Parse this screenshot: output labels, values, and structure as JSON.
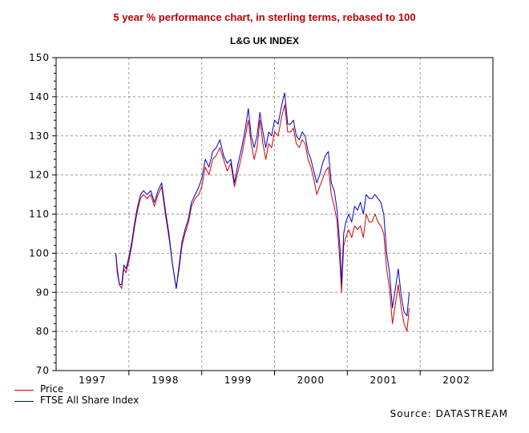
{
  "titles": {
    "main": "5 year % performance chart, in sterling terms, rebased to 100",
    "sub": "L&G UK INDEX"
  },
  "source": "Source: DATASTREAM",
  "colors": {
    "price": "#d40000",
    "ftse": "#0000c8",
    "title": "#c00000",
    "grid": "#9a9a9a"
  },
  "chart_data": {
    "type": "line",
    "title": "5 year % performance chart, in sterling terms, rebased to 100",
    "subtitle": "L&G UK INDEX",
    "xlabel": "",
    "ylabel": "",
    "xlim": [
      1997.0,
      2003.0
    ],
    "ylim": [
      70,
      150
    ],
    "x_ticks": [
      "1997",
      "1998",
      "1999",
      "2000",
      "2001",
      "2002"
    ],
    "y_ticks": [
      70,
      80,
      90,
      100,
      110,
      120,
      130,
      140,
      150
    ],
    "grid": true,
    "legend": "bottom-left",
    "series": [
      {
        "name": "Price",
        "points": [
          [
            1997.82,
            100
          ],
          [
            1997.84,
            95
          ],
          [
            1997.87,
            92
          ],
          [
            1997.9,
            91
          ],
          [
            1997.93,
            96
          ],
          [
            1997.96,
            95
          ],
          [
            1998.0,
            98
          ],
          [
            1998.04,
            102
          ],
          [
            1998.08,
            107
          ],
          [
            1998.12,
            111
          ],
          [
            1998.16,
            114
          ],
          [
            1998.2,
            115
          ],
          [
            1998.25,
            114
          ],
          [
            1998.3,
            115
          ],
          [
            1998.35,
            112
          ],
          [
            1998.4,
            115
          ],
          [
            1998.45,
            117
          ],
          [
            1998.5,
            110
          ],
          [
            1998.55,
            104
          ],
          [
            1998.6,
            97
          ],
          [
            1998.65,
            91
          ],
          [
            1998.69,
            96
          ],
          [
            1998.73,
            102
          ],
          [
            1998.77,
            105
          ],
          [
            1998.82,
            108
          ],
          [
            1998.86,
            112
          ],
          [
            1998.91,
            114
          ],
          [
            1998.96,
            115
          ],
          [
            1999.0,
            117
          ],
          [
            1999.05,
            122
          ],
          [
            1999.1,
            120
          ],
          [
            1999.15,
            124
          ],
          [
            1999.2,
            125
          ],
          [
            1999.25,
            127
          ],
          [
            1999.3,
            124
          ],
          [
            1999.35,
            121
          ],
          [
            1999.4,
            123
          ],
          [
            1999.45,
            117
          ],
          [
            1999.5,
            121
          ],
          [
            1999.55,
            125
          ],
          [
            1999.6,
            130
          ],
          [
            1999.64,
            134
          ],
          [
            1999.68,
            128
          ],
          [
            1999.72,
            124
          ],
          [
            1999.76,
            127
          ],
          [
            1999.8,
            134
          ],
          [
            1999.84,
            128
          ],
          [
            1999.88,
            124
          ],
          [
            1999.92,
            128
          ],
          [
            1999.96,
            127
          ],
          [
            2000.0,
            131
          ],
          [
            2000.05,
            130
          ],
          [
            2000.1,
            135
          ],
          [
            2000.14,
            138
          ],
          [
            2000.18,
            131
          ],
          [
            2000.22,
            131
          ],
          [
            2000.26,
            132
          ],
          [
            2000.3,
            128
          ],
          [
            2000.34,
            127
          ],
          [
            2000.38,
            129
          ],
          [
            2000.42,
            128
          ],
          [
            2000.46,
            124
          ],
          [
            2000.5,
            122
          ],
          [
            2000.54,
            119
          ],
          [
            2000.58,
            115
          ],
          [
            2000.62,
            117
          ],
          [
            2000.66,
            119
          ],
          [
            2000.7,
            121
          ],
          [
            2000.74,
            122
          ],
          [
            2000.78,
            115
          ],
          [
            2000.82,
            112
          ],
          [
            2000.86,
            108
          ],
          [
            2000.9,
            97
          ],
          [
            2000.92,
            90
          ],
          [
            2000.95,
            102
          ],
          [
            2000.98,
            104
          ],
          [
            2001.02,
            106
          ],
          [
            2001.06,
            104
          ],
          [
            2001.1,
            107
          ],
          [
            2001.14,
            106
          ],
          [
            2001.18,
            107
          ],
          [
            2001.22,
            104
          ],
          [
            2001.26,
            110
          ],
          [
            2001.3,
            108
          ],
          [
            2001.34,
            108
          ],
          [
            2001.38,
            110
          ],
          [
            2001.42,
            108
          ],
          [
            2001.46,
            107
          ],
          [
            2001.5,
            105
          ],
          [
            2001.54,
            96
          ],
          [
            2001.58,
            91
          ],
          [
            2001.62,
            82
          ],
          [
            2001.66,
            87
          ],
          [
            2001.7,
            92
          ],
          [
            2001.74,
            86
          ],
          [
            2001.78,
            82
          ],
          [
            2001.82,
            80
          ],
          [
            2001.85,
            86
          ]
        ]
      },
      {
        "name": "FTSE All Share Index",
        "points": [
          [
            1997.82,
            100
          ],
          [
            1997.84,
            96
          ],
          [
            1997.87,
            92
          ],
          [
            1997.9,
            92
          ],
          [
            1997.93,
            97
          ],
          [
            1997.96,
            96
          ],
          [
            1998.0,
            99
          ],
          [
            1998.04,
            103
          ],
          [
            1998.08,
            108
          ],
          [
            1998.12,
            112
          ],
          [
            1998.16,
            115
          ],
          [
            1998.2,
            116
          ],
          [
            1998.25,
            115
          ],
          [
            1998.3,
            116
          ],
          [
            1998.35,
            113
          ],
          [
            1998.4,
            116
          ],
          [
            1998.45,
            118
          ],
          [
            1998.5,
            111
          ],
          [
            1998.55,
            105
          ],
          [
            1998.6,
            97
          ],
          [
            1998.65,
            91
          ],
          [
            1998.69,
            97
          ],
          [
            1998.73,
            103
          ],
          [
            1998.77,
            106
          ],
          [
            1998.82,
            109
          ],
          [
            1998.86,
            113
          ],
          [
            1998.91,
            115
          ],
          [
            1998.96,
            117
          ],
          [
            1999.0,
            119
          ],
          [
            1999.05,
            124
          ],
          [
            1999.1,
            122
          ],
          [
            1999.15,
            126
          ],
          [
            1999.2,
            127
          ],
          [
            1999.25,
            129
          ],
          [
            1999.3,
            125
          ],
          [
            1999.35,
            123
          ],
          [
            1999.4,
            124
          ],
          [
            1999.45,
            118
          ],
          [
            1999.5,
            123
          ],
          [
            1999.55,
            127
          ],
          [
            1999.6,
            132
          ],
          [
            1999.64,
            137
          ],
          [
            1999.68,
            130
          ],
          [
            1999.72,
            127
          ],
          [
            1999.76,
            130
          ],
          [
            1999.8,
            136
          ],
          [
            1999.84,
            131
          ],
          [
            1999.88,
            127
          ],
          [
            1999.92,
            131
          ],
          [
            1999.96,
            130
          ],
          [
            2000.0,
            134
          ],
          [
            2000.05,
            133
          ],
          [
            2000.1,
            138
          ],
          [
            2000.14,
            141
          ],
          [
            2000.18,
            133
          ],
          [
            2000.22,
            133
          ],
          [
            2000.26,
            134
          ],
          [
            2000.3,
            130
          ],
          [
            2000.34,
            129
          ],
          [
            2000.38,
            131
          ],
          [
            2000.42,
            130
          ],
          [
            2000.46,
            126
          ],
          [
            2000.5,
            124
          ],
          [
            2000.54,
            121
          ],
          [
            2000.58,
            118
          ],
          [
            2000.62,
            120
          ],
          [
            2000.66,
            123
          ],
          [
            2000.7,
            125
          ],
          [
            2000.74,
            126
          ],
          [
            2000.78,
            118
          ],
          [
            2000.82,
            116
          ],
          [
            2000.86,
            111
          ],
          [
            2000.9,
            101
          ],
          [
            2000.92,
            92
          ],
          [
            2000.95,
            105
          ],
          [
            2000.98,
            108
          ],
          [
            2001.02,
            110
          ],
          [
            2001.06,
            108
          ],
          [
            2001.1,
            112
          ],
          [
            2001.14,
            111
          ],
          [
            2001.18,
            113
          ],
          [
            2001.22,
            110
          ],
          [
            2001.26,
            115
          ],
          [
            2001.3,
            114
          ],
          [
            2001.34,
            114
          ],
          [
            2001.38,
            115
          ],
          [
            2001.42,
            114
          ],
          [
            2001.46,
            113
          ],
          [
            2001.5,
            110
          ],
          [
            2001.54,
            100
          ],
          [
            2001.58,
            95
          ],
          [
            2001.62,
            86
          ],
          [
            2001.66,
            91
          ],
          [
            2001.7,
            96
          ],
          [
            2001.74,
            89
          ],
          [
            2001.78,
            85
          ],
          [
            2001.82,
            84
          ],
          [
            2001.85,
            90
          ]
        ]
      }
    ]
  }
}
